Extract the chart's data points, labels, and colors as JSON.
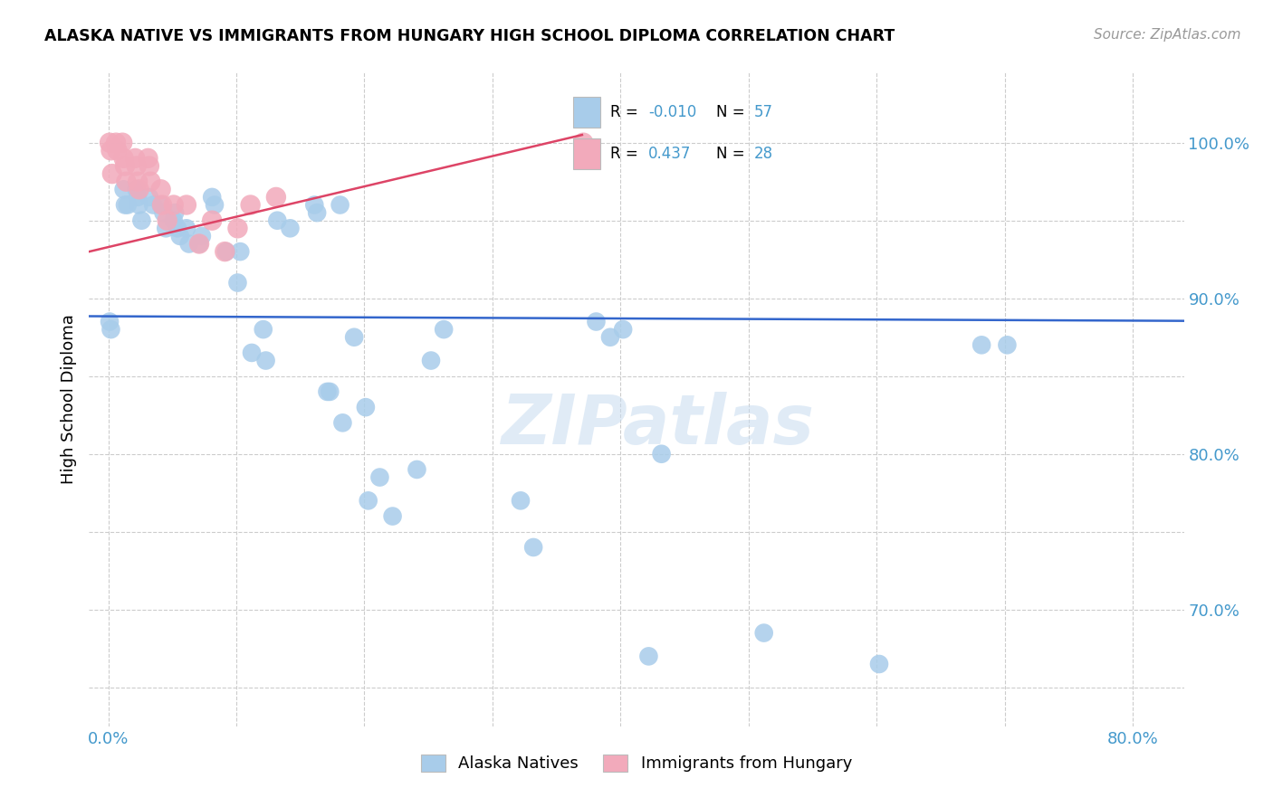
{
  "title": "ALASKA NATIVE VS IMMIGRANTS FROM HUNGARY HIGH SCHOOL DIPLOMA CORRELATION CHART",
  "source": "Source: ZipAtlas.com",
  "ylabel": "High School Diploma",
  "x_ticks": [
    0.0,
    0.1,
    0.2,
    0.3,
    0.4,
    0.5,
    0.6,
    0.7,
    0.8
  ],
  "x_tick_labels": [
    "0.0%",
    "",
    "",
    "",
    "",
    "",
    "",
    "",
    "80.0%"
  ],
  "y_ticks": [
    0.65,
    0.7,
    0.75,
    0.8,
    0.85,
    0.9,
    0.95,
    1.0
  ],
  "y_tick_labels": [
    "",
    "70.0%",
    "",
    "80.0%",
    "",
    "90.0%",
    "",
    "100.0%"
  ],
  "xlim": [
    -0.015,
    0.84
  ],
  "ylim": [
    0.625,
    1.045
  ],
  "blue_color": "#A8CCEA",
  "pink_color": "#F2AABB",
  "blue_line_color": "#3366CC",
  "pink_line_color": "#DD4466",
  "watermark": "ZIPatlas",
  "alaska_x": [
    0.001,
    0.002,
    0.012,
    0.013,
    0.015,
    0.022,
    0.023,
    0.024,
    0.026,
    0.032,
    0.035,
    0.041,
    0.043,
    0.045,
    0.051,
    0.052,
    0.054,
    0.056,
    0.061,
    0.063,
    0.071,
    0.073,
    0.081,
    0.083,
    0.092,
    0.101,
    0.103,
    0.112,
    0.121,
    0.123,
    0.132,
    0.142,
    0.161,
    0.163,
    0.171,
    0.173,
    0.181,
    0.183,
    0.192,
    0.201,
    0.203,
    0.212,
    0.222,
    0.241,
    0.252,
    0.262,
    0.322,
    0.332,
    0.381,
    0.392,
    0.402,
    0.422,
    0.432,
    0.512,
    0.602,
    0.682,
    0.702
  ],
  "alaska_y": [
    0.885,
    0.88,
    0.97,
    0.96,
    0.96,
    0.97,
    0.965,
    0.96,
    0.95,
    0.965,
    0.96,
    0.96,
    0.955,
    0.945,
    0.95,
    0.955,
    0.945,
    0.94,
    0.945,
    0.935,
    0.935,
    0.94,
    0.965,
    0.96,
    0.93,
    0.91,
    0.93,
    0.865,
    0.88,
    0.86,
    0.95,
    0.945,
    0.96,
    0.955,
    0.84,
    0.84,
    0.96,
    0.82,
    0.875,
    0.83,
    0.77,
    0.785,
    0.76,
    0.79,
    0.86,
    0.88,
    0.77,
    0.74,
    0.885,
    0.875,
    0.88,
    0.67,
    0.8,
    0.685,
    0.665,
    0.87,
    0.87
  ],
  "hungary_x": [
    0.001,
    0.002,
    0.003,
    0.006,
    0.007,
    0.011,
    0.012,
    0.013,
    0.014,
    0.021,
    0.022,
    0.023,
    0.024,
    0.031,
    0.032,
    0.033,
    0.041,
    0.042,
    0.046,
    0.051,
    0.061,
    0.071,
    0.081,
    0.091,
    0.101,
    0.111,
    0.131,
    0.371
  ],
  "hungary_y": [
    1.0,
    0.995,
    0.98,
    1.0,
    0.995,
    1.0,
    0.99,
    0.985,
    0.975,
    0.99,
    0.985,
    0.975,
    0.97,
    0.99,
    0.985,
    0.975,
    0.97,
    0.96,
    0.95,
    0.96,
    0.96,
    0.935,
    0.95,
    0.93,
    0.945,
    0.96,
    0.965,
    1.0
  ],
  "alaska_R": -0.01,
  "alaska_N": 57,
  "hungary_R": 0.437,
  "hungary_N": 28,
  "alaska_line_x": [
    -0.015,
    0.84
  ],
  "alaska_line_y": [
    0.8885,
    0.8855
  ],
  "hungary_line_x": [
    -0.015,
    0.37
  ],
  "hungary_line_y": [
    0.93,
    1.005
  ]
}
